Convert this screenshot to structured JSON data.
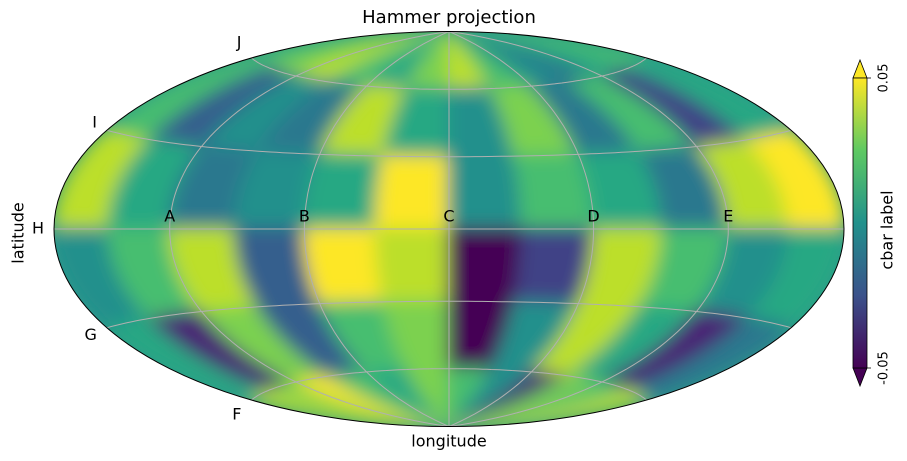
{
  "chart_data": {
    "type": "healpix-map",
    "projection": "hammer",
    "title": "Hammer projection",
    "xlabel": "longitude",
    "ylabel": "latitude",
    "xlim": [
      -180,
      180
    ],
    "ylim": [
      -90,
      90
    ],
    "xticks": [
      {
        "value": -120,
        "label": "A"
      },
      {
        "value": -60,
        "label": "B"
      },
      {
        "value": 0,
        "label": "C"
      },
      {
        "value": 60,
        "label": "D"
      },
      {
        "value": 120,
        "label": "E"
      }
    ],
    "yticks": [
      {
        "value": -60,
        "label": "F"
      },
      {
        "value": -30,
        "label": "G"
      },
      {
        "value": 0,
        "label": "H"
      },
      {
        "value": 30,
        "label": "I"
      },
      {
        "value": 60,
        "label": "J"
      }
    ],
    "grid": true,
    "colormap": "viridis",
    "colorbar": {
      "label": "cbar label",
      "lim": [
        -0.05,
        0.05
      ],
      "ticks": [
        -0.05,
        0.05
      ],
      "extend": "both"
    },
    "lon_edges": [
      -180,
      -150,
      -120,
      -90,
      -60,
      -30,
      0,
      30,
      60,
      90,
      120,
      150,
      180
    ],
    "lat_edges": [
      90,
      60,
      30,
      0,
      -30,
      -60,
      -90
    ],
    "values": [
      [
        0.02,
        0.03,
        0.04,
        0.02,
        0.01,
        0.03,
        0.04,
        0.02,
        0.0,
        -0.01,
        0.01,
        0.02
      ],
      [
        0.02,
        -0.02,
        0.0,
        -0.01,
        0.04,
        0.01,
        0.0,
        0.03,
        -0.01,
        0.02,
        -0.03,
        0.01
      ],
      [
        0.04,
        0.01,
        -0.01,
        0.0,
        0.01,
        0.05,
        0.0,
        0.02,
        0.01,
        -0.01,
        0.04,
        0.05
      ],
      [
        0.0,
        0.02,
        0.04,
        -0.02,
        0.05,
        0.04,
        -0.05,
        -0.03,
        0.04,
        0.02,
        0.0,
        0.01
      ],
      [
        0.01,
        -0.04,
        0.03,
        -0.02,
        0.02,
        0.03,
        -0.05,
        0.0,
        0.04,
        0.01,
        -0.04,
        -0.01
      ],
      [
        0.04,
        0.03,
        0.05,
        0.02,
        0.01,
        0.03,
        0.02,
        0.0,
        -0.04,
        0.03,
        0.02,
        0.04
      ]
    ]
  }
}
